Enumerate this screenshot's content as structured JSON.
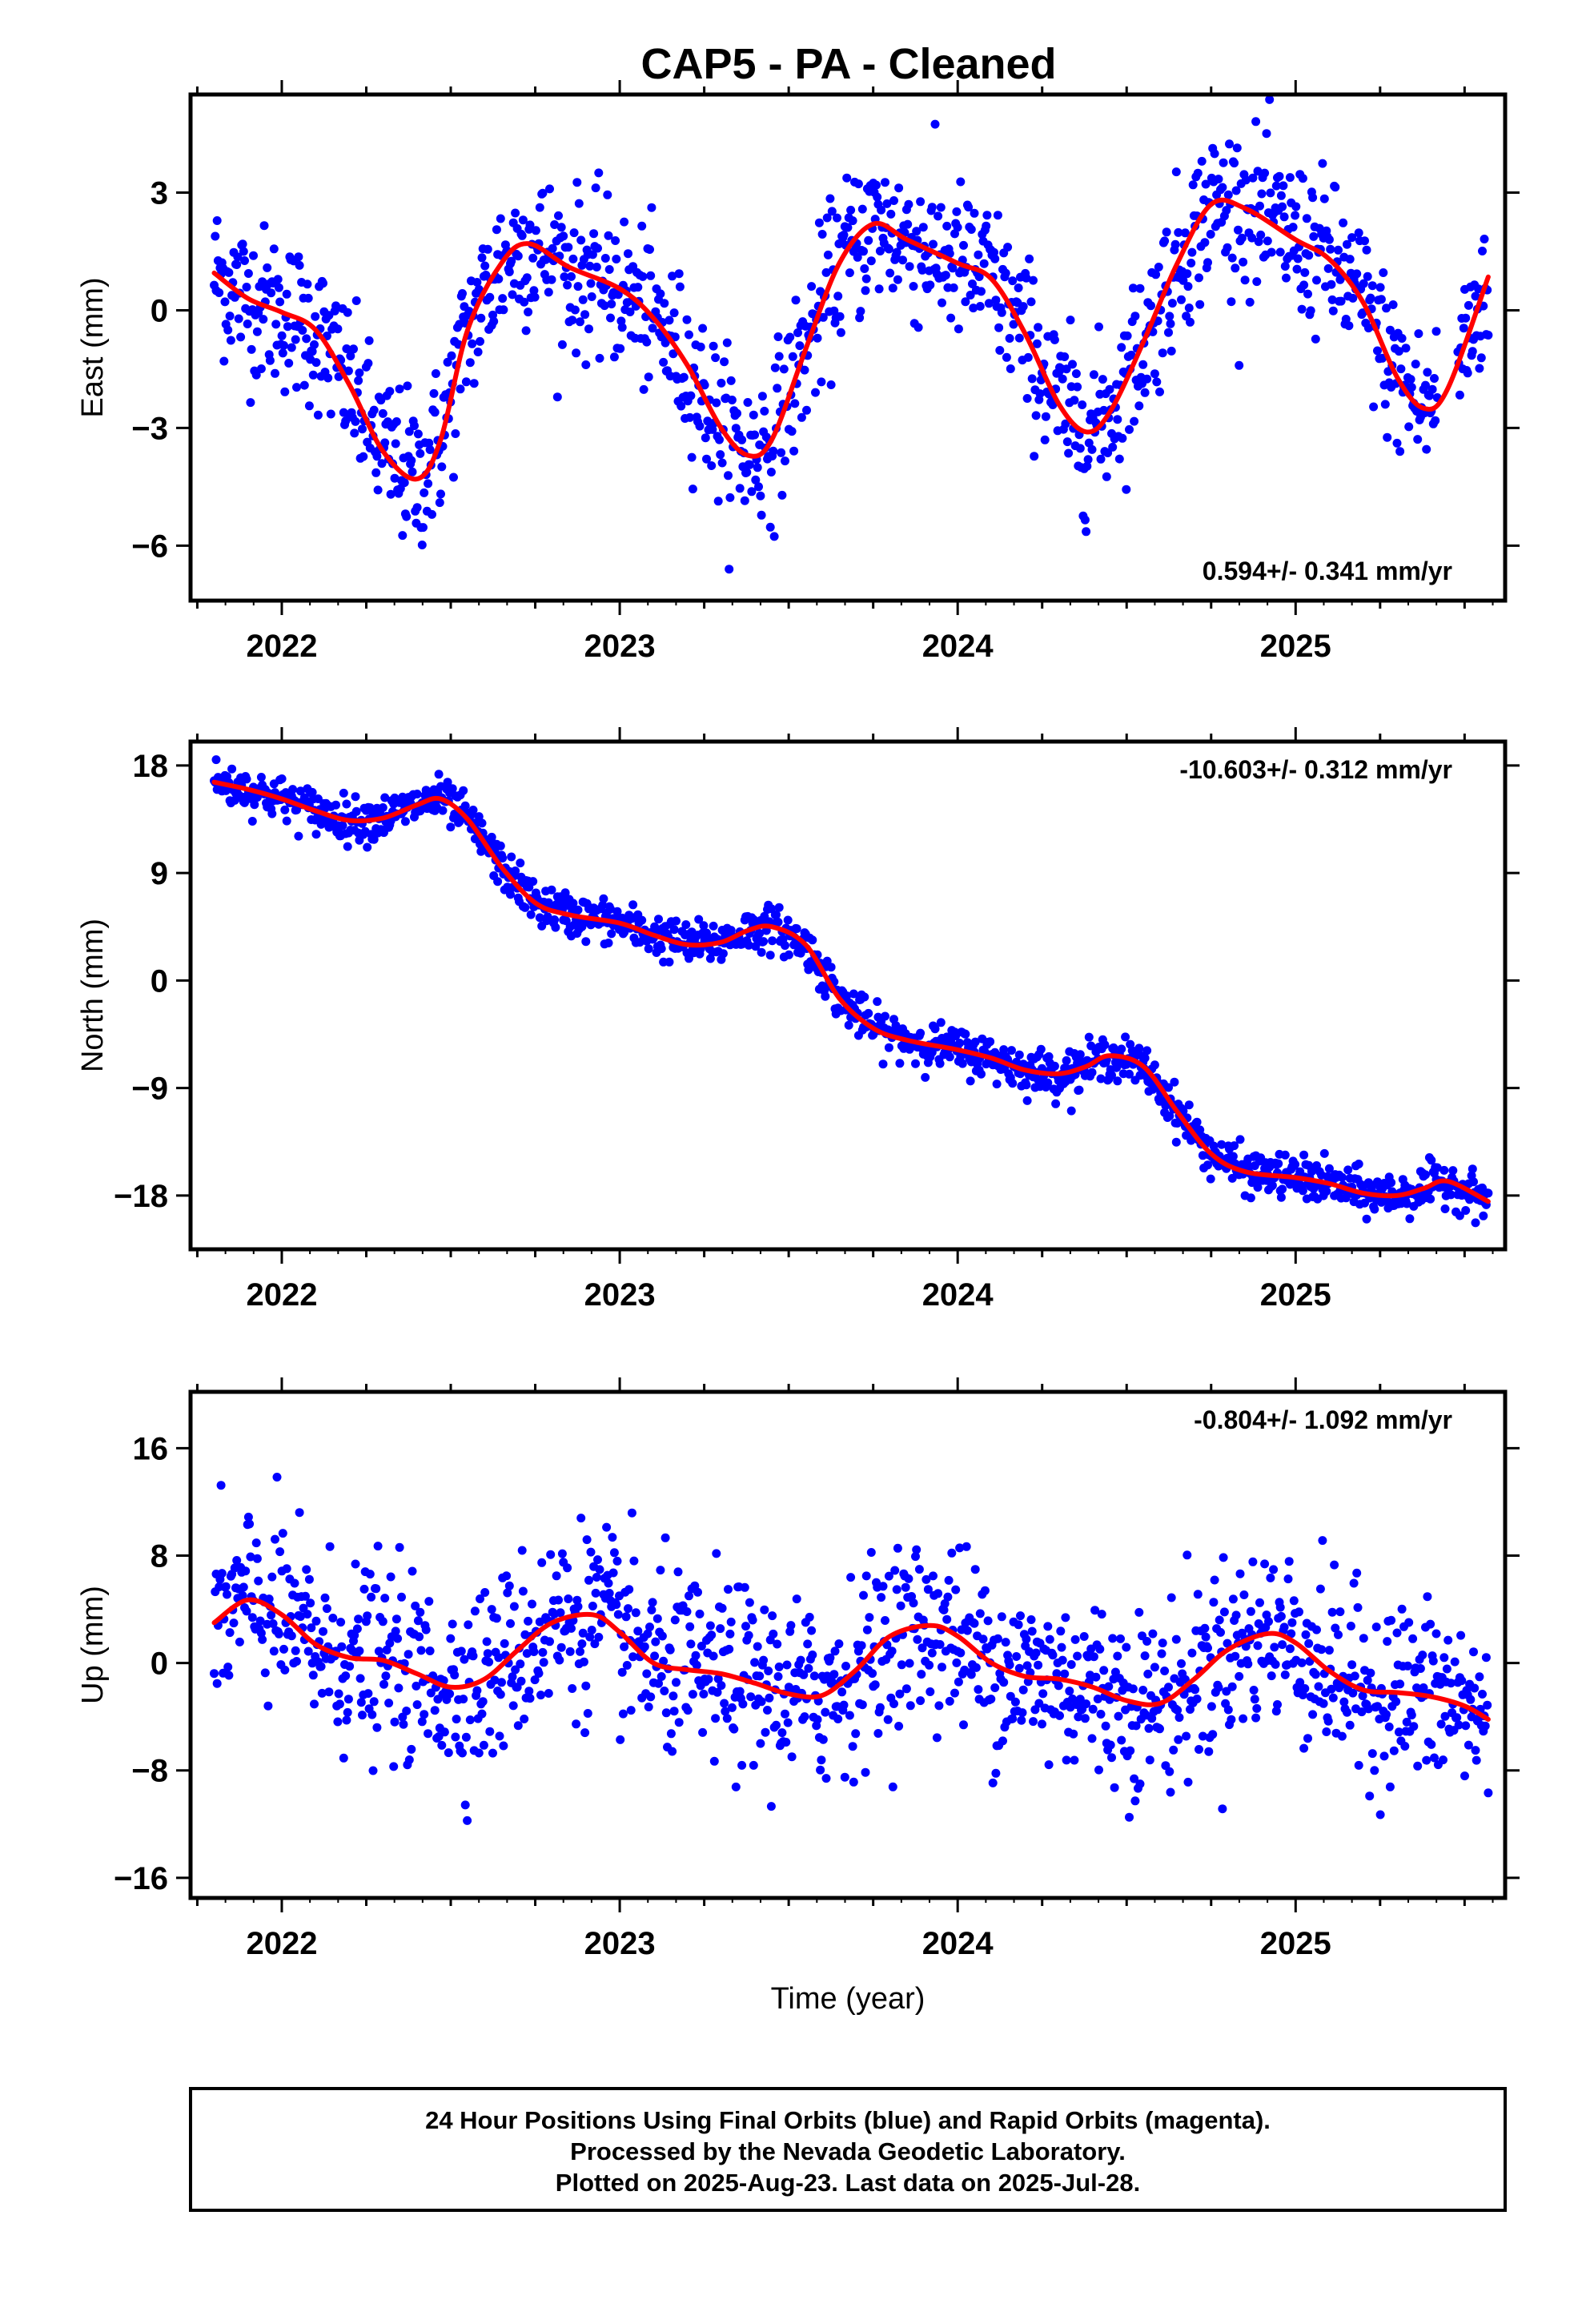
{
  "title": "CAP5  - PA - Cleaned",
  "chart_data": [
    {
      "type": "scatter",
      "ylabel": "East (mm)",
      "xlabel": "",
      "xlim": [
        2021.73,
        2025.62
      ],
      "ylim": [
        -7.4,
        5.5
      ],
      "xticks": [
        2022,
        2023,
        2024,
        2025
      ],
      "yticks": [
        -6,
        -3,
        0,
        3
      ],
      "rate": "0.594+/- 0.341 mm/yr",
      "rate_position": "bottom-right",
      "series": [
        {
          "x": [
            2021.8,
            2021.9,
            2022.0,
            2022.1,
            2022.2,
            2022.3,
            2022.4,
            2022.47,
            2022.55,
            2022.65,
            2022.73,
            2022.85,
            2023.0,
            2023.1,
            2023.2,
            2023.3,
            2023.38,
            2023.45,
            2023.55,
            2023.65,
            2023.75,
            2023.85,
            2024.0,
            2024.1,
            2024.2,
            2024.3,
            2024.38,
            2024.45,
            2024.55,
            2024.65,
            2024.75,
            2024.85,
            2025.0,
            2025.1,
            2025.2,
            2025.3,
            2025.38,
            2025.45,
            2025.57
          ],
          "values": [
            0.95,
            0.3,
            -0.05,
            -0.5,
            -1.9,
            -3.6,
            -4.3,
            -3.3,
            -0.5,
            1.2,
            1.7,
            1.1,
            0.55,
            -0.2,
            -1.4,
            -3.0,
            -3.7,
            -3.3,
            -1.0,
            1.2,
            2.2,
            1.8,
            1.2,
            0.8,
            -0.6,
            -2.4,
            -3.1,
            -2.6,
            -0.8,
            1.2,
            2.7,
            2.6,
            1.8,
            1.3,
            0.2,
            -1.7,
            -2.5,
            -2.0,
            0.85
          ]
        }
      ]
    },
    {
      "type": "scatter",
      "ylabel": "North (mm)",
      "xlabel": "",
      "xlim": [
        2021.73,
        2025.62
      ],
      "ylim": [
        -22.5,
        20.0
      ],
      "xticks": [
        2022,
        2023,
        2024,
        2025
      ],
      "yticks": [
        -18,
        -9,
        0,
        9,
        18
      ],
      "rate": "-10.603+/- 0.312 mm/yr",
      "rate_position": "top-right",
      "series": [
        {
          "x": [
            2021.8,
            2021.9,
            2022.0,
            2022.1,
            2022.2,
            2022.3,
            2022.4,
            2022.47,
            2022.55,
            2022.65,
            2022.75,
            2022.85,
            2023.0,
            2023.1,
            2023.2,
            2023.3,
            2023.38,
            2023.45,
            2023.55,
            2023.65,
            2023.75,
            2023.85,
            2024.0,
            2024.1,
            2024.2,
            2024.3,
            2024.38,
            2024.45,
            2024.55,
            2024.65,
            2024.75,
            2024.85,
            2025.0,
            2025.1,
            2025.2,
            2025.3,
            2025.38,
            2025.45,
            2025.57
          ],
          "values": [
            16.6,
            16.0,
            15.2,
            14.2,
            13.4,
            13.6,
            14.7,
            15.2,
            13.5,
            9.5,
            6.5,
            5.5,
            4.8,
            3.8,
            3.0,
            3.2,
            4.2,
            4.5,
            3.0,
            -1.5,
            -4.0,
            -5.0,
            -5.8,
            -6.5,
            -7.5,
            -7.8,
            -7.2,
            -6.3,
            -7.2,
            -11.0,
            -14.5,
            -16.0,
            -16.5,
            -17.0,
            -17.8,
            -18.0,
            -17.4,
            -16.8,
            -18.5
          ]
        }
      ]
    },
    {
      "type": "scatter",
      "ylabel": "Up (mm)",
      "xlabel": "Time (year)",
      "xlim": [
        2021.73,
        2025.62
      ],
      "ylim": [
        -17.5,
        20.2
      ],
      "xticks": [
        2022,
        2023,
        2024,
        2025
      ],
      "yticks": [
        -16,
        -8,
        0,
        8,
        16
      ],
      "rate": "-0.804+/- 1.092 mm/yr",
      "rate_position": "top-right",
      "series": [
        {
          "x": [
            2021.8,
            2021.9,
            2022.0,
            2022.1,
            2022.2,
            2022.3,
            2022.4,
            2022.5,
            2022.6,
            2022.7,
            2022.8,
            2022.92,
            2023.0,
            2023.1,
            2023.2,
            2023.3,
            2023.4,
            2023.5,
            2023.6,
            2023.7,
            2023.8,
            2023.92,
            2024.0,
            2024.1,
            2024.2,
            2024.3,
            2024.4,
            2024.5,
            2024.6,
            2024.7,
            2024.8,
            2024.92,
            2025.0,
            2025.1,
            2025.2,
            2025.3,
            2025.4,
            2025.5,
            2025.57
          ],
          "values": [
            3.0,
            4.7,
            3.6,
            1.4,
            0.4,
            0.2,
            -0.8,
            -1.8,
            -1.2,
            1.0,
            3.0,
            3.6,
            2.3,
            0.0,
            -0.5,
            -0.8,
            -1.5,
            -2.3,
            -2.4,
            -0.5,
            2.0,
            2.8,
            2.0,
            0.0,
            -1.0,
            -1.2,
            -1.8,
            -2.8,
            -3.0,
            -1.2,
            1.0,
            2.2,
            1.5,
            -0.6,
            -2.0,
            -2.2,
            -2.5,
            -3.2,
            -4.2
          ]
        }
      ]
    }
  ],
  "footer": {
    "line1": "24 Hour Positions Using Final Orbits (blue) and Rapid Orbits (magenta).",
    "line2": "Processed by the Nevada Geodetic Laboratory.",
    "line3": "Plotted on 2025-Aug-23. Last data on 2025-Jul-28."
  },
  "colors": {
    "points": "#0000ff",
    "fit_line": "#ff0000",
    "frame": "#000000"
  }
}
